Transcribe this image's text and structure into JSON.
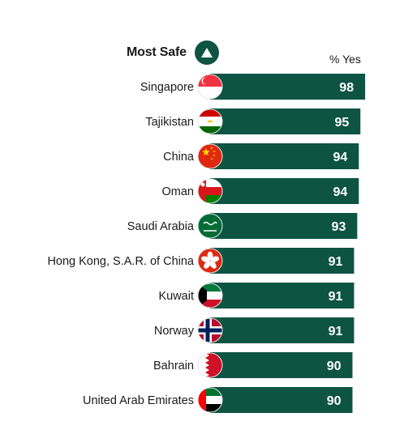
{
  "header": {
    "title": "Most Safe",
    "unit": "% Yes"
  },
  "colors": {
    "bar": "#0d5443",
    "badge": "#0d5443"
  },
  "chart_data": {
    "type": "bar",
    "orientation": "horizontal",
    "title": "Most Safe",
    "xlabel": "% Yes",
    "categories": [
      "Singapore",
      "Tajikistan",
      "China",
      "Oman",
      "Saudi Arabia",
      "Hong Kong, S.A.R. of China",
      "Kuwait",
      "Norway",
      "Bahrain",
      "United Arab Emirates"
    ],
    "values": [
      98,
      95,
      94,
      94,
      93,
      91,
      91,
      91,
      90,
      90
    ],
    "flags": [
      "singapore-flag-icon",
      "tajikistan-flag-icon",
      "china-flag-icon",
      "oman-flag-icon",
      "saudi-arabia-flag-icon",
      "hong-kong-flag-icon",
      "kuwait-flag-icon",
      "norway-flag-icon",
      "bahrain-flag-icon",
      "uae-flag-icon"
    ],
    "data_labels": true,
    "grid": false
  }
}
